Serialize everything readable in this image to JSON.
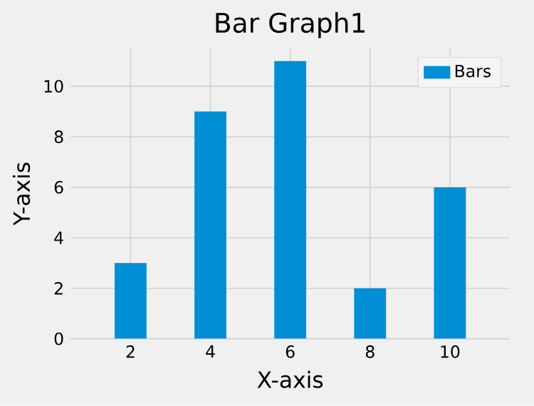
{
  "chart_data": {
    "type": "bar",
    "title": "Bar Graph1",
    "xlabel": "X-axis",
    "ylabel": "Y-axis",
    "categories": [
      "2",
      "4",
      "6",
      "8",
      "10"
    ],
    "series": [
      {
        "name": "Bars",
        "color": "#008fd5",
        "values": [
          3,
          9,
          11,
          2,
          6
        ]
      }
    ],
    "ylim": [
      0,
      11.5
    ],
    "yticks": [
      0,
      2,
      4,
      6,
      8,
      10
    ],
    "grid": true,
    "legend": "top right"
  }
}
